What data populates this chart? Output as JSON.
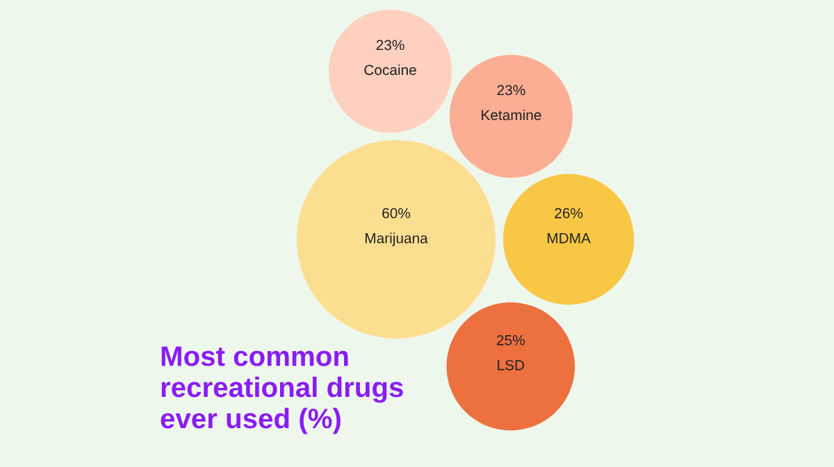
{
  "chart_data": {
    "type": "other",
    "title": "Most common recreational drugs ever used (%)",
    "categories": [
      "Cocaine",
      "Ketamine",
      "Marijuana",
      "MDMA",
      "LSD"
    ],
    "values": [
      23,
      23,
      60,
      26,
      25
    ],
    "value_labels": [
      "23%",
      "23%",
      "60%",
      "26%",
      "25%"
    ],
    "colors": [
      "#fdd0c0",
      "#fcae94",
      "#fcde91",
      "#f8c745",
      "#ed703f"
    ]
  }
}
